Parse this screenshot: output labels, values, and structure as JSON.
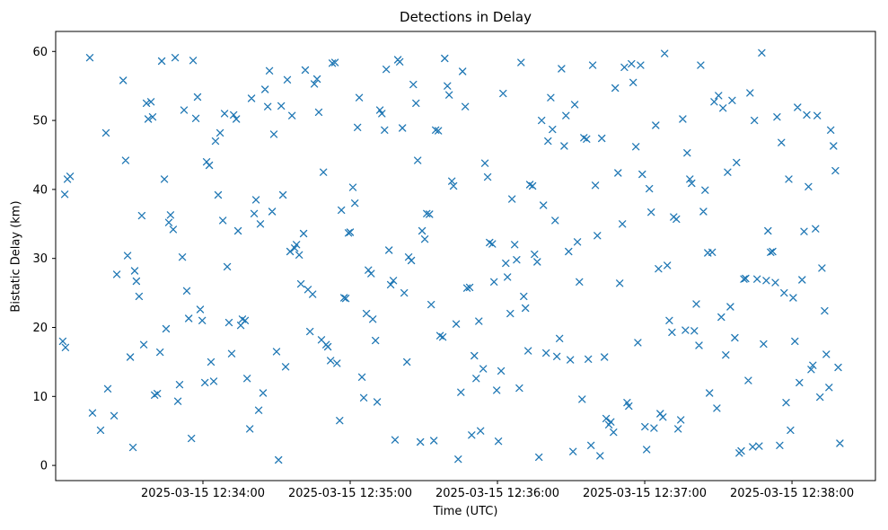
{
  "chart_data": {
    "type": "scatter",
    "title": "Detections in Delay",
    "xlabel": "Time (UTC)",
    "ylabel": "Bistatic Delay (km)",
    "marker": "x",
    "marker_color": "#1f77b4",
    "xlim": [
      0,
      334
    ],
    "ylim": [
      -2.2,
      62.9
    ],
    "y_ticks": [
      0,
      10,
      20,
      30,
      40,
      50,
      60
    ],
    "x_ticks": [
      {
        "t": 60,
        "label": "2025-03-15 12:34:00"
      },
      {
        "t": 120,
        "label": "2025-03-15 12:35:00"
      },
      {
        "t": 180,
        "label": "2025-03-15 12:36:00"
      },
      {
        "t": 240,
        "label": "2025-03-15 12:37:00"
      },
      {
        "t": 300,
        "label": "2025-03-15 12:38:00"
      }
    ],
    "points": [
      [
        2.9,
        18.0
      ],
      [
        4.0,
        17.1
      ],
      [
        3.7,
        39.3
      ],
      [
        4.8,
        41.5
      ],
      [
        5.9,
        41.9
      ],
      [
        13.9,
        59.1
      ],
      [
        15.0,
        7.6
      ],
      [
        18.3,
        5.1
      ],
      [
        20.5,
        48.2
      ],
      [
        21.2,
        11.1
      ],
      [
        23.8,
        7.2
      ],
      [
        24.9,
        27.7
      ],
      [
        27.5,
        55.8
      ],
      [
        28.5,
        44.2
      ],
      [
        29.3,
        30.4
      ],
      [
        30.4,
        15.7
      ],
      [
        31.5,
        2.6
      ],
      [
        32.2,
        28.2
      ],
      [
        32.9,
        26.7
      ],
      [
        34.0,
        24.5
      ],
      [
        35.1,
        36.2
      ],
      [
        35.9,
        17.5
      ],
      [
        37.0,
        52.5
      ],
      [
        37.7,
        50.2
      ],
      [
        38.8,
        52.7
      ],
      [
        39.5,
        50.5
      ],
      [
        40.3,
        10.2
      ],
      [
        41.4,
        10.4
      ],
      [
        42.5,
        16.4
      ],
      [
        43.2,
        58.6
      ],
      [
        44.3,
        41.5
      ],
      [
        45.0,
        19.8
      ],
      [
        46.1,
        35.2
      ],
      [
        46.8,
        36.3
      ],
      [
        47.9,
        34.2
      ],
      [
        48.7,
        59.1
      ],
      [
        49.8,
        9.3
      ],
      [
        50.5,
        11.7
      ],
      [
        51.6,
        30.2
      ],
      [
        52.3,
        51.5
      ],
      [
        53.4,
        25.3
      ],
      [
        54.2,
        21.3
      ],
      [
        55.3,
        3.9
      ],
      [
        56.0,
        58.7
      ],
      [
        57.1,
        50.3
      ],
      [
        57.8,
        53.4
      ],
      [
        58.9,
        22.6
      ],
      [
        59.7,
        21.0
      ],
      [
        60.8,
        12.0
      ],
      [
        61.5,
        44.0
      ],
      [
        62.6,
        43.5
      ],
      [
        63.3,
        15.0
      ],
      [
        64.4,
        12.2
      ],
      [
        65.1,
        47.0
      ],
      [
        66.2,
        39.2
      ],
      [
        67.0,
        48.2
      ],
      [
        68.1,
        35.5
      ],
      [
        68.8,
        51.0
      ],
      [
        69.9,
        28.8
      ],
      [
        70.6,
        20.7
      ],
      [
        71.7,
        16.2
      ],
      [
        72.5,
        50.8
      ],
      [
        73.6,
        50.2
      ],
      [
        74.3,
        34.0
      ],
      [
        75.4,
        20.3
      ],
      [
        76.1,
        21.2
      ],
      [
        77.2,
        21.0
      ],
      [
        78.0,
        12.6
      ],
      [
        79.1,
        5.3
      ],
      [
        79.8,
        53.2
      ],
      [
        80.9,
        36.5
      ],
      [
        81.6,
        38.5
      ],
      [
        82.7,
        8.0
      ],
      [
        83.4,
        35.0
      ],
      [
        84.5,
        10.5
      ],
      [
        85.3,
        54.5
      ],
      [
        86.4,
        52.0
      ],
      [
        87.1,
        57.2
      ],
      [
        88.2,
        36.8
      ],
      [
        88.9,
        48.0
      ],
      [
        90.0,
        16.5
      ],
      [
        90.8,
        0.8
      ],
      [
        91.9,
        52.1
      ],
      [
        92.6,
        39.2
      ],
      [
        93.7,
        14.3
      ],
      [
        94.4,
        55.9
      ],
      [
        95.5,
        31.0
      ],
      [
        96.3,
        50.7
      ],
      [
        97.4,
        31.5
      ],
      [
        98.1,
        32.0
      ],
      [
        99.2,
        30.5
      ],
      [
        99.9,
        26.3
      ],
      [
        101.0,
        33.6
      ],
      [
        101.7,
        57.3
      ],
      [
        102.8,
        25.5
      ],
      [
        103.6,
        19.4
      ],
      [
        104.7,
        24.8
      ],
      [
        105.4,
        55.3
      ],
      [
        106.5,
        56.0
      ],
      [
        107.2,
        51.2
      ],
      [
        108.3,
        18.2
      ],
      [
        109.1,
        42.5
      ],
      [
        110.2,
        17.5
      ],
      [
        110.9,
        17.2
      ],
      [
        112.0,
        15.2
      ],
      [
        112.7,
        58.3
      ],
      [
        113.8,
        58.4
      ],
      [
        114.6,
        14.8
      ],
      [
        115.7,
        6.5
      ],
      [
        116.4,
        37.0
      ],
      [
        117.5,
        24.3
      ],
      [
        118.2,
        24.2
      ],
      [
        119.3,
        33.7
      ],
      [
        120.0,
        33.8
      ],
      [
        121.1,
        40.3
      ],
      [
        121.9,
        38.0
      ],
      [
        123.0,
        49.0
      ],
      [
        123.7,
        53.3
      ],
      [
        124.8,
        12.8
      ],
      [
        125.5,
        9.8
      ],
      [
        126.6,
        22.0
      ],
      [
        127.4,
        28.3
      ],
      [
        128.5,
        27.8
      ],
      [
        129.2,
        21.2
      ],
      [
        130.3,
        18.1
      ],
      [
        131.0,
        9.2
      ],
      [
        132.1,
        51.5
      ],
      [
        132.9,
        51.0
      ],
      [
        134.0,
        48.6
      ],
      [
        134.7,
        57.4
      ],
      [
        135.8,
        31.2
      ],
      [
        136.5,
        26.2
      ],
      [
        137.6,
        26.8
      ],
      [
        138.3,
        3.7
      ],
      [
        139.4,
        58.8
      ],
      [
        140.2,
        58.5
      ],
      [
        141.3,
        48.9
      ],
      [
        142.0,
        25.0
      ],
      [
        143.1,
        15.0
      ],
      [
        143.8,
        30.2
      ],
      [
        144.9,
        29.7
      ],
      [
        145.7,
        55.2
      ],
      [
        146.8,
        52.5
      ],
      [
        147.5,
        44.2
      ],
      [
        148.6,
        3.4
      ],
      [
        149.3,
        34.0
      ],
      [
        150.4,
        32.8
      ],
      [
        151.2,
        36.5
      ],
      [
        152.3,
        36.4
      ],
      [
        153.0,
        23.3
      ],
      [
        154.1,
        3.6
      ],
      [
        154.8,
        48.6
      ],
      [
        155.9,
        48.5
      ],
      [
        156.6,
        18.8
      ],
      [
        157.7,
        18.6
      ],
      [
        158.5,
        59.0
      ],
      [
        159.6,
        55.0
      ],
      [
        160.3,
        53.7
      ],
      [
        161.4,
        41.2
      ],
      [
        162.1,
        40.5
      ],
      [
        163.2,
        20.5
      ],
      [
        164.0,
        0.9
      ],
      [
        165.1,
        10.6
      ],
      [
        165.8,
        57.1
      ],
      [
        166.9,
        52.0
      ],
      [
        167.6,
        25.7
      ],
      [
        168.7,
        25.8
      ],
      [
        169.5,
        4.4
      ],
      [
        170.6,
        15.9
      ],
      [
        171.3,
        12.6
      ],
      [
        172.4,
        20.9
      ],
      [
        173.1,
        5.0
      ],
      [
        174.2,
        14.0
      ],
      [
        174.9,
        43.8
      ],
      [
        176.0,
        41.8
      ],
      [
        176.8,
        32.3
      ],
      [
        177.9,
        32.1
      ],
      [
        178.6,
        26.6
      ],
      [
        179.7,
        10.9
      ],
      [
        180.4,
        3.5
      ],
      [
        181.5,
        13.7
      ],
      [
        182.3,
        53.9
      ],
      [
        183.4,
        29.3
      ],
      [
        184.1,
        27.3
      ],
      [
        185.2,
        22.0
      ],
      [
        185.9,
        38.6
      ],
      [
        187.0,
        32.0
      ],
      [
        187.8,
        29.8
      ],
      [
        188.9,
        11.2
      ],
      [
        189.6,
        58.4
      ],
      [
        190.7,
        24.5
      ],
      [
        191.4,
        22.8
      ],
      [
        192.5,
        16.6
      ],
      [
        193.2,
        40.7
      ],
      [
        194.3,
        40.5
      ],
      [
        195.1,
        30.6
      ],
      [
        196.2,
        29.5
      ],
      [
        196.9,
        1.2
      ],
      [
        198.0,
        50.0
      ],
      [
        198.7,
        37.7
      ],
      [
        199.8,
        16.3
      ],
      [
        200.6,
        47.0
      ],
      [
        201.7,
        53.3
      ],
      [
        202.4,
        48.7
      ],
      [
        203.5,
        35.5
      ],
      [
        204.2,
        15.8
      ],
      [
        205.3,
        18.4
      ],
      [
        206.1,
        57.5
      ],
      [
        207.2,
        46.3
      ],
      [
        207.9,
        50.7
      ],
      [
        209.0,
        31.0
      ],
      [
        209.7,
        15.3
      ],
      [
        210.8,
        2.0
      ],
      [
        211.5,
        52.3
      ],
      [
        212.6,
        32.4
      ],
      [
        213.4,
        26.6
      ],
      [
        214.5,
        9.6
      ],
      [
        215.2,
        47.5
      ],
      [
        216.3,
        47.3
      ],
      [
        217.0,
        15.4
      ],
      [
        218.1,
        2.9
      ],
      [
        218.8,
        58.0
      ],
      [
        219.9,
        40.6
      ],
      [
        220.7,
        33.3
      ],
      [
        221.8,
        1.4
      ],
      [
        222.5,
        47.4
      ],
      [
        223.6,
        15.7
      ],
      [
        224.3,
        6.8
      ],
      [
        225.4,
        5.9
      ],
      [
        226.2,
        6.3
      ],
      [
        227.3,
        4.8
      ],
      [
        228.0,
        54.7
      ],
      [
        229.1,
        42.4
      ],
      [
        229.8,
        26.4
      ],
      [
        230.9,
        35.0
      ],
      [
        231.7,
        57.7
      ],
      [
        232.8,
        9.1
      ],
      [
        233.5,
        8.6
      ],
      [
        234.6,
        58.2
      ],
      [
        235.3,
        55.5
      ],
      [
        236.4,
        46.2
      ],
      [
        237.2,
        17.8
      ],
      [
        238.3,
        58.0
      ],
      [
        239.0,
        42.2
      ],
      [
        240.1,
        5.6
      ],
      [
        240.8,
        2.3
      ],
      [
        241.9,
        40.1
      ],
      [
        242.6,
        36.7
      ],
      [
        243.8,
        5.4
      ],
      [
        244.5,
        49.3
      ],
      [
        245.6,
        28.5
      ],
      [
        246.3,
        7.5
      ],
      [
        247.4,
        7.0
      ],
      [
        248.1,
        59.7
      ],
      [
        249.2,
        29.0
      ],
      [
        250.0,
        21.0
      ],
      [
        251.1,
        19.3
      ],
      [
        251.8,
        36.0
      ],
      [
        252.9,
        35.7
      ],
      [
        253.6,
        5.3
      ],
      [
        254.7,
        6.6
      ],
      [
        255.5,
        50.2
      ],
      [
        256.6,
        19.6
      ],
      [
        257.3,
        45.3
      ],
      [
        258.4,
        41.5
      ],
      [
        259.1,
        40.9
      ],
      [
        260.2,
        19.5
      ],
      [
        261.0,
        23.4
      ],
      [
        262.1,
        17.4
      ],
      [
        262.8,
        58.0
      ],
      [
        263.9,
        36.8
      ],
      [
        264.6,
        39.9
      ],
      [
        265.7,
        30.8
      ],
      [
        266.4,
        10.5
      ],
      [
        267.5,
        30.9
      ],
      [
        268.3,
        52.7
      ],
      [
        269.4,
        8.3
      ],
      [
        270.1,
        53.6
      ],
      [
        271.2,
        21.5
      ],
      [
        271.9,
        51.8
      ],
      [
        273.0,
        16.0
      ],
      [
        273.8,
        42.5
      ],
      [
        274.9,
        23.0
      ],
      [
        275.6,
        52.9
      ],
      [
        276.7,
        18.5
      ],
      [
        277.4,
        43.9
      ],
      [
        278.5,
        1.8
      ],
      [
        279.3,
        2.1
      ],
      [
        280.4,
        27.0
      ],
      [
        281.1,
        27.1
      ],
      [
        282.2,
        12.3
      ],
      [
        282.9,
        54.0
      ],
      [
        284.0,
        2.7
      ],
      [
        284.7,
        50.0
      ],
      [
        285.8,
        27.0
      ],
      [
        286.6,
        2.8
      ],
      [
        287.7,
        59.8
      ],
      [
        288.4,
        17.6
      ],
      [
        289.5,
        26.8
      ],
      [
        290.2,
        34.0
      ],
      [
        291.3,
        30.9
      ],
      [
        292.1,
        31.0
      ],
      [
        293.2,
        26.5
      ],
      [
        293.9,
        50.5
      ],
      [
        295.0,
        2.9
      ],
      [
        295.7,
        46.8
      ],
      [
        296.8,
        25.0
      ],
      [
        297.6,
        9.1
      ],
      [
        298.7,
        41.5
      ],
      [
        299.4,
        5.1
      ],
      [
        300.5,
        24.3
      ],
      [
        301.2,
        18.0
      ],
      [
        302.3,
        51.9
      ],
      [
        303.0,
        12.0
      ],
      [
        304.1,
        26.9
      ],
      [
        304.9,
        33.9
      ],
      [
        306.0,
        50.8
      ],
      [
        306.7,
        40.4
      ],
      [
        307.8,
        13.9
      ],
      [
        308.5,
        14.5
      ],
      [
        309.6,
        34.3
      ],
      [
        310.3,
        50.7
      ],
      [
        311.4,
        9.9
      ],
      [
        312.2,
        28.6
      ],
      [
        313.3,
        22.4
      ],
      [
        314.0,
        16.1
      ],
      [
        315.1,
        11.3
      ],
      [
        315.8,
        48.6
      ],
      [
        316.9,
        46.3
      ],
      [
        317.7,
        42.7
      ],
      [
        318.8,
        14.2
      ],
      [
        319.5,
        3.2
      ]
    ]
  }
}
